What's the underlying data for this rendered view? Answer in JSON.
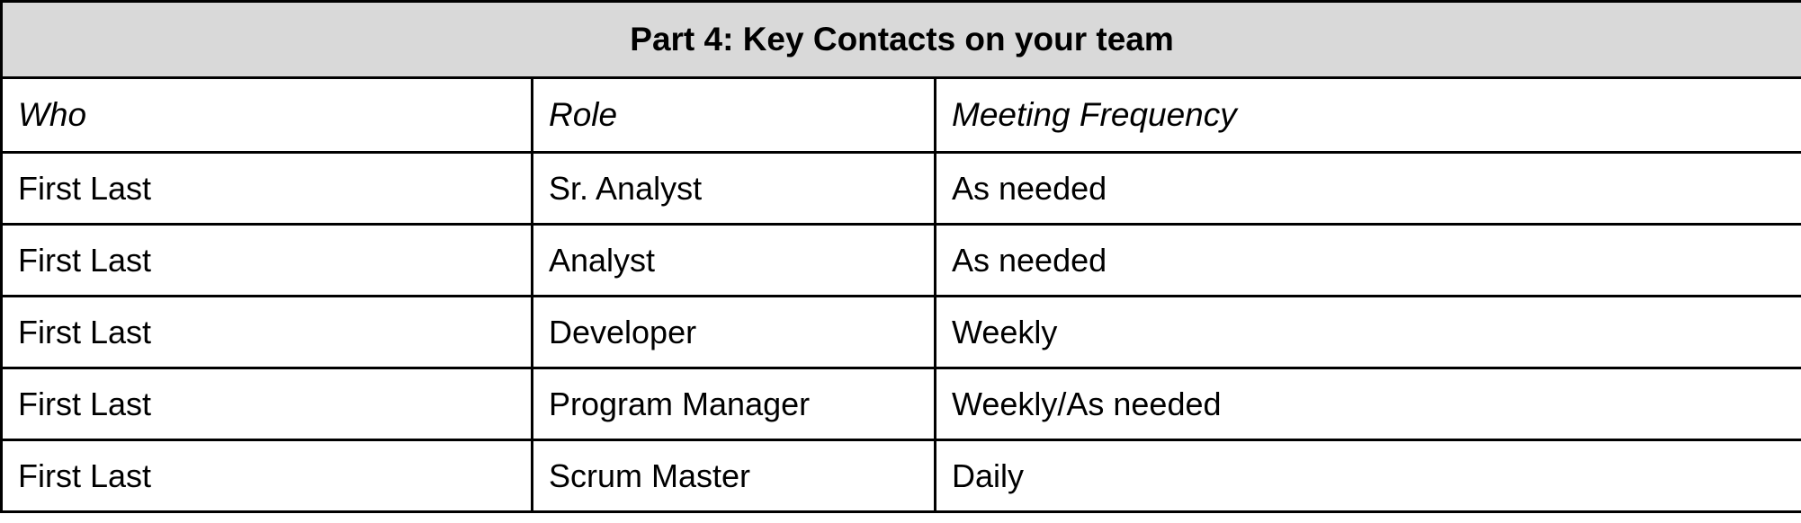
{
  "table": {
    "title": "Part 4: Key Contacts on your team",
    "columns": [
      "Who",
      "Role",
      "Meeting Frequency"
    ],
    "rows": [
      [
        "First Last",
        "Sr. Analyst",
        "As needed"
      ],
      [
        "First Last",
        "Analyst",
        "As needed"
      ],
      [
        "First Last",
        "Developer",
        "Weekly"
      ],
      [
        "First Last",
        "Program Manager",
        "Weekly/As needed"
      ],
      [
        "First Last",
        "Scrum Master",
        "Daily"
      ]
    ]
  },
  "colors": {
    "title_background": "#d9d9d9",
    "border": "#000000"
  }
}
